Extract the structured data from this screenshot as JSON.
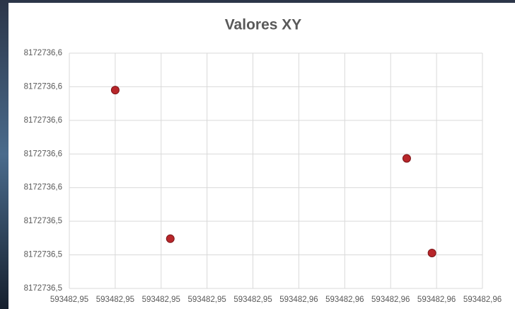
{
  "chart_data": {
    "type": "scatter",
    "title": "Valores XY",
    "series": [
      {
        "color": "#b8262a",
        "x": [
          593482.948,
          593482.9504,
          593482.9607,
          593482.9618
        ],
        "values": [
          8172736.618,
          8172736.5296,
          8172736.5774,
          8172736.5211
        ]
      }
    ],
    "xlim": [
      593482.946,
      593482.964
    ],
    "xticks": [
      {
        "value": 593482.946,
        "label": "593482,95"
      },
      {
        "value": 593482.948,
        "label": "593482,95"
      },
      {
        "value": 593482.95,
        "label": "593482,95"
      },
      {
        "value": 593482.952,
        "label": "593482,95"
      },
      {
        "value": 593482.954,
        "label": "593482,95"
      },
      {
        "value": 593482.956,
        "label": "593482,96"
      },
      {
        "value": 593482.958,
        "label": "593482,96"
      },
      {
        "value": 593482.96,
        "label": "593482,96"
      },
      {
        "value": 593482.962,
        "label": "593482,96"
      },
      {
        "value": 593482.964,
        "label": "593482,96"
      }
    ],
    "ylim": [
      8172736.5,
      8172736.64
    ],
    "yticks": [
      {
        "value": 8172736.5,
        "label": "8172736,5"
      },
      {
        "value": 8172736.52,
        "label": "8172736,5"
      },
      {
        "value": 8172736.54,
        "label": "8172736,5"
      },
      {
        "value": 8172736.56,
        "label": "8172736,6"
      },
      {
        "value": 8172736.58,
        "label": "8172736,6"
      },
      {
        "value": 8172736.6,
        "label": "8172736,6"
      },
      {
        "value": 8172736.62,
        "label": "8172736,6"
      },
      {
        "value": 8172736.64,
        "label": "8172736,6"
      }
    ],
    "grid": true
  }
}
